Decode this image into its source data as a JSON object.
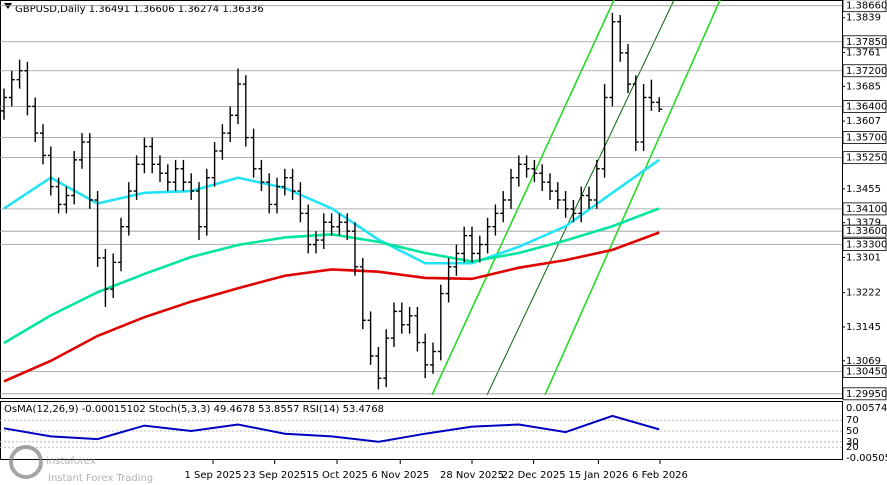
{
  "chart_data": [
    {
      "type": "candlestick",
      "symbol": "GBPUSD,Daily",
      "header_values": [
        1.36491,
        1.36606,
        1.36274,
        1.36336
      ],
      "ylim": [
        1.29856,
        1.38698
      ],
      "yticks": [
        1.3839,
        1.3761,
        1.3685,
        1.3607,
        1.3455,
        1.3379,
        1.3301,
        1.3222,
        1.3145,
        1.3069
      ],
      "levels": [
        {
          "value": 1.3866,
          "label": "1.38660"
        },
        {
          "value": 1.3785,
          "label": "1.37850"
        },
        {
          "value": 1.372,
          "label": "1.37200"
        },
        {
          "value": 1.364,
          "label": "1.36400"
        },
        {
          "value": 1.357,
          "label": "1.35700"
        },
        {
          "value": 1.3525,
          "label": "1.35250"
        },
        {
          "value": 1.341,
          "label": "1.34100"
        },
        {
          "value": 1.336,
          "label": "1.33600"
        },
        {
          "value": 1.333,
          "label": "1.33300"
        },
        {
          "value": 1.3045,
          "label": "1.30450"
        },
        {
          "value": 1.2995,
          "label": "1.29950"
        }
      ],
      "xticks": [
        {
          "value": 26.8,
          "label": "1 Sep 2025"
        },
        {
          "value": 34.7,
          "label": "23 Sep 2025"
        },
        {
          "value": 42.7,
          "label": "15 Oct 2025"
        },
        {
          "value": 50.8,
          "label": "6 Nov 2025"
        },
        {
          "value": 60,
          "label": "28 Nov 2025"
        },
        {
          "value": 67.9,
          "label": "22 Dec 2025"
        },
        {
          "value": 76.2,
          "label": "15 Jan 2026"
        },
        {
          "value": 84.1,
          "label": "6 Feb 2026"
        }
      ],
      "bar_color": "#000000",
      "ohlc": [
        [
          1.363,
          1.368,
          1.361,
          1.366
        ],
        [
          1.366,
          1.372,
          1.364,
          1.37
        ],
        [
          1.37,
          1.3745,
          1.368,
          1.372
        ],
        [
          1.372,
          1.374,
          1.362,
          1.364
        ],
        [
          1.364,
          1.366,
          1.356,
          1.358
        ],
        [
          1.358,
          1.36,
          1.351,
          1.353
        ],
        [
          1.353,
          1.355,
          1.344,
          1.346
        ],
        [
          1.346,
          1.348,
          1.34,
          1.342
        ],
        [
          1.342,
          1.346,
          1.34,
          1.344
        ],
        [
          1.344,
          1.354,
          1.342,
          1.352
        ],
        [
          1.352,
          1.358,
          1.35,
          1.356
        ],
        [
          1.356,
          1.358,
          1.341,
          1.343
        ],
        [
          1.343,
          1.345,
          1.328,
          1.33
        ],
        [
          1.33,
          1.332,
          1.319,
          1.323
        ],
        [
          1.323,
          1.331,
          1.321,
          1.329
        ],
        [
          1.329,
          1.339,
          1.327,
          1.337
        ],
        [
          1.337,
          1.347,
          1.335,
          1.345
        ],
        [
          1.345,
          1.353,
          1.343,
          1.351
        ],
        [
          1.351,
          1.357,
          1.349,
          1.355
        ],
        [
          1.355,
          1.357,
          1.349,
          1.351
        ],
        [
          1.351,
          1.353,
          1.347,
          1.349
        ],
        [
          1.349,
          1.351,
          1.345,
          1.347
        ],
        [
          1.347,
          1.352,
          1.345,
          1.35
        ],
        [
          1.35,
          1.352,
          1.345,
          1.347
        ],
        [
          1.347,
          1.349,
          1.343,
          1.345
        ],
        [
          1.345,
          1.347,
          1.334,
          1.337
        ],
        [
          1.337,
          1.35,
          1.335,
          1.348
        ],
        [
          1.348,
          1.356,
          1.346,
          1.354
        ],
        [
          1.354,
          1.36,
          1.352,
          1.358
        ],
        [
          1.358,
          1.364,
          1.356,
          1.362
        ],
        [
          1.362,
          1.3725,
          1.36,
          1.369
        ],
        [
          1.369,
          1.371,
          1.355,
          1.357
        ],
        [
          1.357,
          1.359,
          1.348,
          1.35
        ],
        [
          1.35,
          1.352,
          1.345,
          1.347
        ],
        [
          1.347,
          1.349,
          1.34,
          1.342
        ],
        [
          1.342,
          1.348,
          1.34,
          1.346
        ],
        [
          1.346,
          1.35,
          1.344,
          1.348
        ],
        [
          1.348,
          1.35,
          1.343,
          1.345
        ],
        [
          1.345,
          1.347,
          1.338,
          1.34
        ],
        [
          1.34,
          1.342,
          1.331,
          1.333
        ],
        [
          1.333,
          1.336,
          1.331,
          1.334
        ],
        [
          1.334,
          1.34,
          1.332,
          1.338
        ],
        [
          1.338,
          1.34,
          1.335,
          1.337
        ],
        [
          1.337,
          1.34,
          1.335,
          1.338
        ],
        [
          1.338,
          1.34,
          1.334,
          1.336
        ],
        [
          1.336,
          1.338,
          1.326,
          1.328
        ],
        [
          1.328,
          1.33,
          1.314,
          1.316
        ],
        [
          1.316,
          1.318,
          1.306,
          1.308
        ],
        [
          1.308,
          1.31,
          1.3005,
          1.303
        ],
        [
          1.303,
          1.314,
          1.301,
          1.312
        ],
        [
          1.312,
          1.32,
          1.31,
          1.318
        ],
        [
          1.318,
          1.32,
          1.313,
          1.315
        ],
        [
          1.315,
          1.319,
          1.313,
          1.317
        ],
        [
          1.317,
          1.319,
          1.309,
          1.311
        ],
        [
          1.311,
          1.313,
          1.303,
          1.306
        ],
        [
          1.306,
          1.311,
          1.304,
          1.309
        ],
        [
          1.309,
          1.324,
          1.307,
          1.322
        ],
        [
          1.322,
          1.33,
          1.32,
          1.328
        ],
        [
          1.328,
          1.333,
          1.326,
          1.331
        ],
        [
          1.331,
          1.337,
          1.329,
          1.335
        ],
        [
          1.335,
          1.337,
          1.329,
          1.331
        ],
        [
          1.331,
          1.335,
          1.329,
          1.333
        ],
        [
          1.333,
          1.339,
          1.331,
          1.337
        ],
        [
          1.337,
          1.342,
          1.335,
          1.34
        ],
        [
          1.34,
          1.345,
          1.338,
          1.343
        ],
        [
          1.343,
          1.35,
          1.341,
          1.348
        ],
        [
          1.348,
          1.353,
          1.346,
          1.351
        ],
        [
          1.351,
          1.353,
          1.348,
          1.35
        ],
        [
          1.35,
          1.352,
          1.347,
          1.349
        ],
        [
          1.349,
          1.351,
          1.345,
          1.347
        ],
        [
          1.347,
          1.349,
          1.343,
          1.345
        ],
        [
          1.345,
          1.347,
          1.341,
          1.343
        ],
        [
          1.343,
          1.345,
          1.339,
          1.341
        ],
        [
          1.341,
          1.343,
          1.338,
          1.34
        ],
        [
          1.34,
          1.346,
          1.338,
          1.344
        ],
        [
          1.344,
          1.346,
          1.341,
          1.343
        ],
        [
          1.343,
          1.352,
          1.341,
          1.35
        ],
        [
          1.35,
          1.369,
          1.348,
          1.366
        ],
        [
          1.366,
          1.385,
          1.364,
          1.383
        ],
        [
          1.383,
          1.3845,
          1.374,
          1.376
        ],
        [
          1.376,
          1.378,
          1.367,
          1.369
        ],
        [
          1.369,
          1.371,
          1.354,
          1.356
        ],
        [
          1.356,
          1.369,
          1.354,
          1.366
        ],
        [
          1.366,
          1.37,
          1.363,
          1.36491
        ],
        [
          1.36491,
          1.36606,
          1.36274,
          1.36336
        ]
      ],
      "series": [
        {
          "color": "#22e4f4",
          "x": [
            0,
            6,
            12,
            18,
            24,
            30,
            36,
            42,
            48,
            54,
            60,
            66,
            72,
            78,
            84
          ],
          "values": [
            1.3411,
            1.348,
            1.3422,
            1.3446,
            1.345,
            1.348,
            1.3457,
            1.3411,
            1.3341,
            1.3288,
            1.3288,
            1.3325,
            1.3371,
            1.3446,
            1.352
          ]
        },
        {
          "color": "#00e6a0",
          "x": [
            0,
            6,
            12,
            18,
            24,
            30,
            36,
            42,
            48,
            54,
            60,
            66,
            72,
            78,
            84
          ],
          "values": [
            1.3109,
            1.3171,
            1.3223,
            1.3264,
            1.3302,
            1.3329,
            1.3346,
            1.3353,
            1.3336,
            1.3311,
            1.3292,
            1.3311,
            1.3339,
            1.3371,
            1.3411
          ]
        },
        {
          "color": "#e00000",
          "x": [
            0,
            6,
            12,
            18,
            24,
            30,
            36,
            42,
            48,
            54,
            60,
            66,
            72,
            78,
            84
          ],
          "values": [
            1.3023,
            1.3069,
            1.3125,
            1.3167,
            1.3202,
            1.3232,
            1.326,
            1.3274,
            1.3269,
            1.3255,
            1.3253,
            1.3278,
            1.3295,
            1.3318,
            1.3357
          ]
        }
      ]
    },
    {
      "type": "line",
      "header": "OsMA(12,26,9) -0.00015102 Stoch(5,3,3) 49.4678 53.8557 RSI(14) 53.4768",
      "ylim": [
        0,
        100
      ],
      "yticks": [
        70,
        50,
        30,
        20
      ],
      "y2lim": [
        -0.00505,
        0.0057444
      ],
      "y2ticks": [
        0.0057444,
        -0.00505
      ],
      "series": [
        {
          "color": "#0000c0",
          "x": [
            0,
            6,
            12,
            18,
            24,
            30,
            36,
            42,
            48,
            54,
            60,
            66,
            72,
            78,
            84
          ],
          "values": [
            55,
            40,
            35,
            60,
            50,
            62,
            45,
            40,
            30,
            45,
            58,
            62,
            48,
            78,
            53
          ]
        }
      ]
    },
    {
      "type": "branding",
      "name": "instaforex",
      "tagline": "Instant Forex Trading"
    }
  ]
}
